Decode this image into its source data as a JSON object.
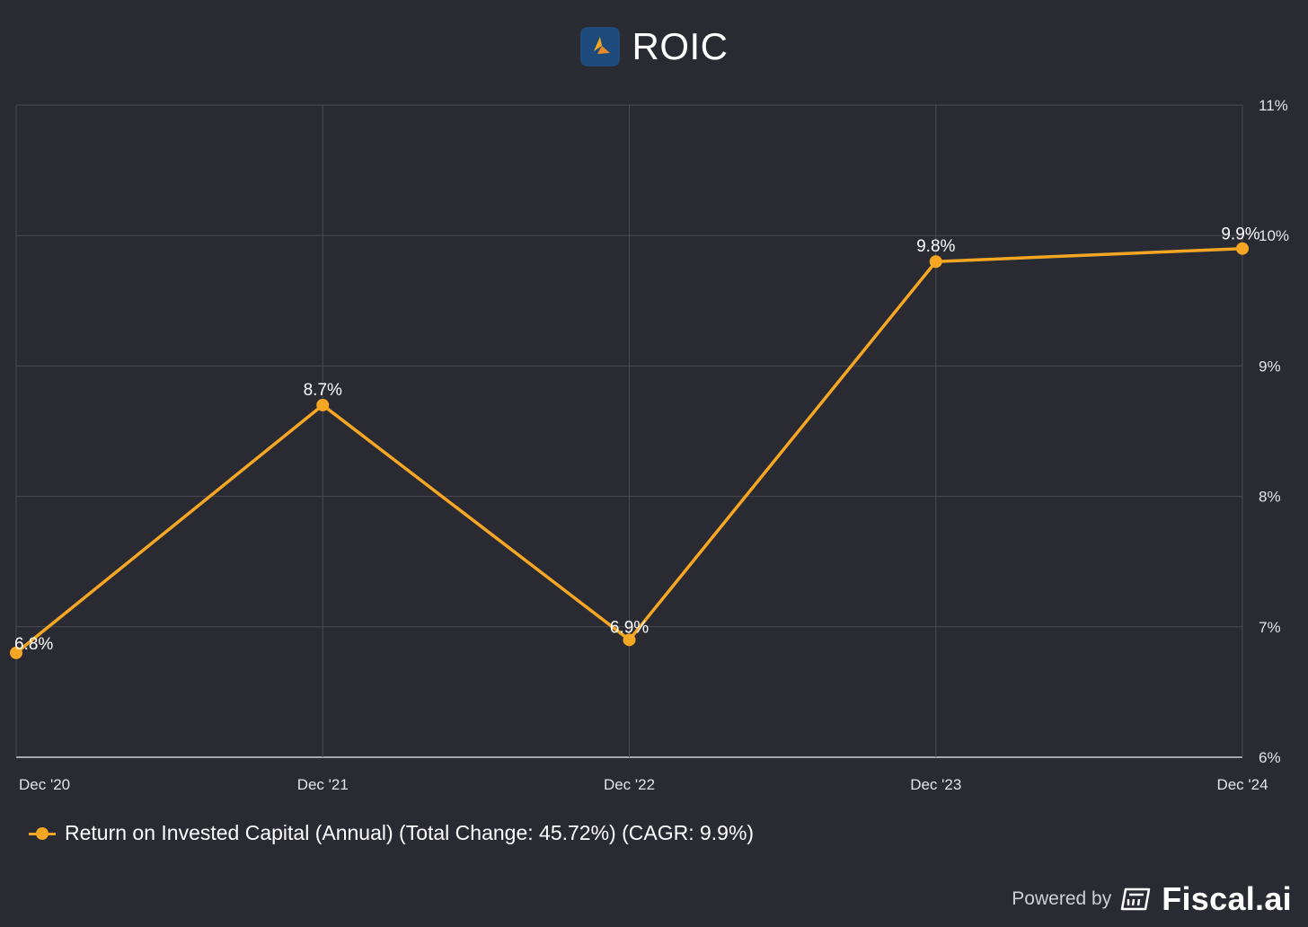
{
  "chart_data": {
    "type": "line",
    "title": "ROIC",
    "categories": [
      "Dec '20",
      "Dec '21",
      "Dec '22",
      "Dec '23",
      "Dec '24"
    ],
    "series": [
      {
        "name": "Return on Invested Capital (Annual) (Total Change: 45.72%) (CAGR: 9.9%)",
        "values": [
          6.8,
          8.7,
          6.9,
          9.8,
          9.9
        ],
        "labels": [
          "6.8%",
          "8.7%",
          "6.9%",
          "9.8%",
          "9.9%"
        ],
        "color": "#f5a623"
      }
    ],
    "y_ticks": [
      "6%",
      "7%",
      "8%",
      "9%",
      "10%",
      "11%"
    ],
    "ylim": [
      6,
      11
    ],
    "ylabel": "",
    "xlabel": "",
    "y_axis_side": "right",
    "grid": true
  },
  "legend_label": "Return on Invested Capital (Annual) (Total Change: 45.72%) (CAGR: 9.9%)",
  "footer": {
    "powered_by": "Powered by",
    "brand": "Fiscal.ai"
  },
  "colors": {
    "background": "#2a2a32",
    "grid": "#4a4a54",
    "line": "#f5a623",
    "logo_bg": "#1f4a7c"
  }
}
